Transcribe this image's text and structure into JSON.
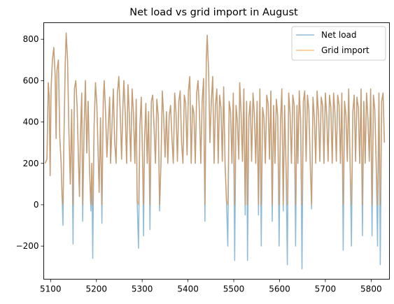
{
  "chart_data": {
    "type": "line",
    "title": "Net load vs grid import in August",
    "xlabel": "",
    "ylabel": "",
    "xlim": [
      5085,
      5840
    ],
    "ylim": [
      -360,
      880
    ],
    "xticks": [
      5100,
      5200,
      5300,
      5400,
      5500,
      5600,
      5700,
      5800
    ],
    "yticks": [
      -200,
      0,
      200,
      400,
      600,
      800
    ],
    "legend_position": "top-right",
    "grid": false,
    "series": [
      {
        "name": "Net load",
        "color": "#1f77b4",
        "opacity": 0.5,
        "keypoints": [
          [
            5088,
            200
          ],
          [
            5092,
            220
          ],
          [
            5095,
            590
          ],
          [
            5097,
            520
          ],
          [
            5099,
            140
          ],
          [
            5101,
            560
          ],
          [
            5104,
            700
          ],
          [
            5107,
            760
          ],
          [
            5110,
            620
          ],
          [
            5112,
            320
          ],
          [
            5114,
            650
          ],
          [
            5117,
            700
          ],
          [
            5120,
            330
          ],
          [
            5123,
            200
          ],
          [
            5125,
            40
          ],
          [
            5127,
            -100
          ],
          [
            5129,
            300
          ],
          [
            5132,
            690
          ],
          [
            5134,
            830
          ],
          [
            5137,
            700
          ],
          [
            5140,
            350
          ],
          [
            5143,
            100
          ],
          [
            5146,
            460
          ],
          [
            5149,
            -190
          ],
          [
            5152,
            560
          ],
          [
            5155,
            600
          ],
          [
            5158,
            470
          ],
          [
            5161,
            200
          ],
          [
            5163,
            40
          ],
          [
            5165,
            330
          ],
          [
            5168,
            540
          ],
          [
            5170,
            -80
          ],
          [
            5173,
            360
          ],
          [
            5176,
            600
          ],
          [
            5179,
            250
          ],
          [
            5182,
            500
          ],
          [
            5185,
            170
          ],
          [
            5188,
            -30
          ],
          [
            5190,
            200
          ],
          [
            5192,
            -260
          ],
          [
            5195,
            380
          ],
          [
            5198,
            590
          ],
          [
            5201,
            480
          ],
          [
            5204,
            230
          ],
          [
            5206,
            60
          ],
          [
            5209,
            420
          ],
          [
            5212,
            -90
          ],
          [
            5215,
            500
          ],
          [
            5217,
            600
          ],
          [
            5220,
            450
          ],
          [
            5223,
            230
          ],
          [
            5226,
            380
          ],
          [
            5229,
            520
          ],
          [
            5231,
            200
          ],
          [
            5234,
            380
          ],
          [
            5237,
            560
          ],
          [
            5240,
            300
          ],
          [
            5243,
            200
          ],
          [
            5246,
            540
          ],
          [
            5249,
            620
          ],
          [
            5252,
            450
          ],
          [
            5255,
            220
          ],
          [
            5258,
            480
          ],
          [
            5260,
            600
          ],
          [
            5263,
            440
          ],
          [
            5266,
            200
          ],
          [
            5269,
            580
          ],
          [
            5272,
            430
          ],
          [
            5275,
            210
          ],
          [
            5278,
            560
          ],
          [
            5281,
            440
          ],
          [
            5284,
            200
          ],
          [
            5287,
            510
          ],
          [
            5289,
            20
          ],
          [
            5292,
            -210
          ],
          [
            5295,
            380
          ],
          [
            5298,
            520
          ],
          [
            5301,
            200
          ],
          [
            5303,
            -150
          ],
          [
            5305,
            300
          ],
          [
            5308,
            490
          ],
          [
            5311,
            200
          ],
          [
            5314,
            450
          ],
          [
            5317,
            -120
          ],
          [
            5320,
            500
          ],
          [
            5323,
            530
          ],
          [
            5326,
            370
          ],
          [
            5329,
            200
          ],
          [
            5332,
            510
          ],
          [
            5335,
            430
          ],
          [
            5338,
            -30
          ],
          [
            5341,
            200
          ],
          [
            5344,
            550
          ],
          [
            5347,
            420
          ],
          [
            5350,
            230
          ],
          [
            5353,
            450
          ],
          [
            5356,
            200
          ],
          [
            5359,
            430
          ],
          [
            5362,
            480
          ],
          [
            5365,
            320
          ],
          [
            5368,
            200
          ],
          [
            5371,
            540
          ],
          [
            5374,
            440
          ],
          [
            5377,
            210
          ],
          [
            5380,
            500
          ],
          [
            5383,
            550
          ],
          [
            5386,
            300
          ],
          [
            5389,
            200
          ],
          [
            5392,
            530
          ],
          [
            5395,
            490
          ],
          [
            5398,
            240
          ],
          [
            5401,
            550
          ],
          [
            5404,
            620
          ],
          [
            5407,
            200
          ],
          [
            5410,
            480
          ],
          [
            5413,
            440
          ],
          [
            5416,
            200
          ],
          [
            5419,
            540
          ],
          [
            5422,
            600
          ],
          [
            5425,
            450
          ],
          [
            5428,
            200
          ],
          [
            5431,
            500
          ],
          [
            5434,
            610
          ],
          [
            5437,
            -80
          ],
          [
            5440,
            700
          ],
          [
            5442,
            820
          ],
          [
            5445,
            650
          ],
          [
            5448,
            300
          ],
          [
            5451,
            500
          ],
          [
            5454,
            620
          ],
          [
            5457,
            200
          ],
          [
            5460,
            480
          ],
          [
            5463,
            560
          ],
          [
            5466,
            200
          ],
          [
            5469,
            530
          ],
          [
            5472,
            470
          ],
          [
            5475,
            210
          ],
          [
            5478,
            570
          ],
          [
            5481,
            200
          ],
          [
            5484,
            20
          ],
          [
            5487,
            -200
          ],
          [
            5490,
            500
          ],
          [
            5493,
            450
          ],
          [
            5496,
            200
          ],
          [
            5499,
            540
          ],
          [
            5502,
            -270
          ],
          [
            5505,
            480
          ],
          [
            5508,
            400
          ],
          [
            5511,
            220
          ],
          [
            5513,
            590
          ],
          [
            5516,
            440
          ],
          [
            5519,
            210
          ],
          [
            5522,
            560
          ],
          [
            5525,
            -50
          ],
          [
            5528,
            500
          ],
          [
            5530,
            -270
          ],
          [
            5533,
            420
          ],
          [
            5536,
            500
          ],
          [
            5539,
            210
          ],
          [
            5542,
            540
          ],
          [
            5545,
            440
          ],
          [
            5548,
            200
          ],
          [
            5551,
            500
          ],
          [
            5554,
            -50
          ],
          [
            5557,
            560
          ],
          [
            5560,
            -200
          ],
          [
            5563,
            470
          ],
          [
            5566,
            420
          ],
          [
            5569,
            200
          ],
          [
            5572,
            530
          ],
          [
            5575,
            490
          ],
          [
            5578,
            220
          ],
          [
            5581,
            550
          ],
          [
            5584,
            -80
          ],
          [
            5587,
            480
          ],
          [
            5590,
            200
          ],
          [
            5593,
            510
          ],
          [
            5596,
            430
          ],
          [
            5599,
            -200
          ],
          [
            5602,
            400
          ],
          [
            5605,
            560
          ],
          [
            5608,
            -30
          ],
          [
            5611,
            480
          ],
          [
            5614,
            200
          ],
          [
            5617,
            -290
          ],
          [
            5620,
            540
          ],
          [
            5623,
            440
          ],
          [
            5626,
            200
          ],
          [
            5629,
            530
          ],
          [
            5632,
            480
          ],
          [
            5635,
            -200
          ],
          [
            5638,
            480
          ],
          [
            5640,
            200
          ],
          [
            5643,
            550
          ],
          [
            5646,
            410
          ],
          [
            5649,
            -310
          ],
          [
            5652,
            500
          ],
          [
            5655,
            550
          ],
          [
            5658,
            210
          ],
          [
            5661,
            530
          ],
          [
            5664,
            460
          ],
          [
            5667,
            200
          ],
          [
            5670,
            -20
          ],
          [
            5673,
            520
          ],
          [
            5676,
            420
          ],
          [
            5679,
            200
          ],
          [
            5682,
            550
          ],
          [
            5685,
            440
          ],
          [
            5688,
            210
          ],
          [
            5691,
            520
          ],
          [
            5694,
            480
          ],
          [
            5697,
            200
          ],
          [
            5700,
            540
          ],
          [
            5703,
            430
          ],
          [
            5706,
            210
          ],
          [
            5709,
            530
          ],
          [
            5712,
            470
          ],
          [
            5715,
            200
          ],
          [
            5718,
            540
          ],
          [
            5721,
            440
          ],
          [
            5724,
            210
          ],
          [
            5727,
            530
          ],
          [
            5730,
            480
          ],
          [
            5733,
            200
          ],
          [
            5736,
            540
          ],
          [
            5739,
            -220
          ],
          [
            5742,
            500
          ],
          [
            5745,
            430
          ],
          [
            5748,
            210
          ],
          [
            5751,
            560
          ],
          [
            5754,
            200
          ],
          [
            5757,
            -200
          ],
          [
            5760,
            450
          ],
          [
            5763,
            530
          ],
          [
            5766,
            210
          ],
          [
            5769,
            520
          ],
          [
            5772,
            470
          ],
          [
            5775,
            200
          ],
          [
            5778,
            560
          ],
          [
            5781,
            -150
          ],
          [
            5784,
            500
          ],
          [
            5787,
            200
          ],
          [
            5790,
            540
          ],
          [
            5793,
            420
          ],
          [
            5796,
            210
          ],
          [
            5799,
            560
          ],
          [
            5802,
            -150
          ],
          [
            5805,
            530
          ],
          [
            5808,
            460
          ],
          [
            5811,
            200
          ],
          [
            5814,
            -200
          ],
          [
            5817,
            540
          ],
          [
            5820,
            -290
          ],
          [
            5823,
            500
          ],
          [
            5826,
            540
          ],
          [
            5829,
            300
          ]
        ]
      },
      {
        "name": "Grid import",
        "color": "#ff7f0e",
        "opacity": 0.5,
        "clip_min": 0
      }
    ]
  }
}
